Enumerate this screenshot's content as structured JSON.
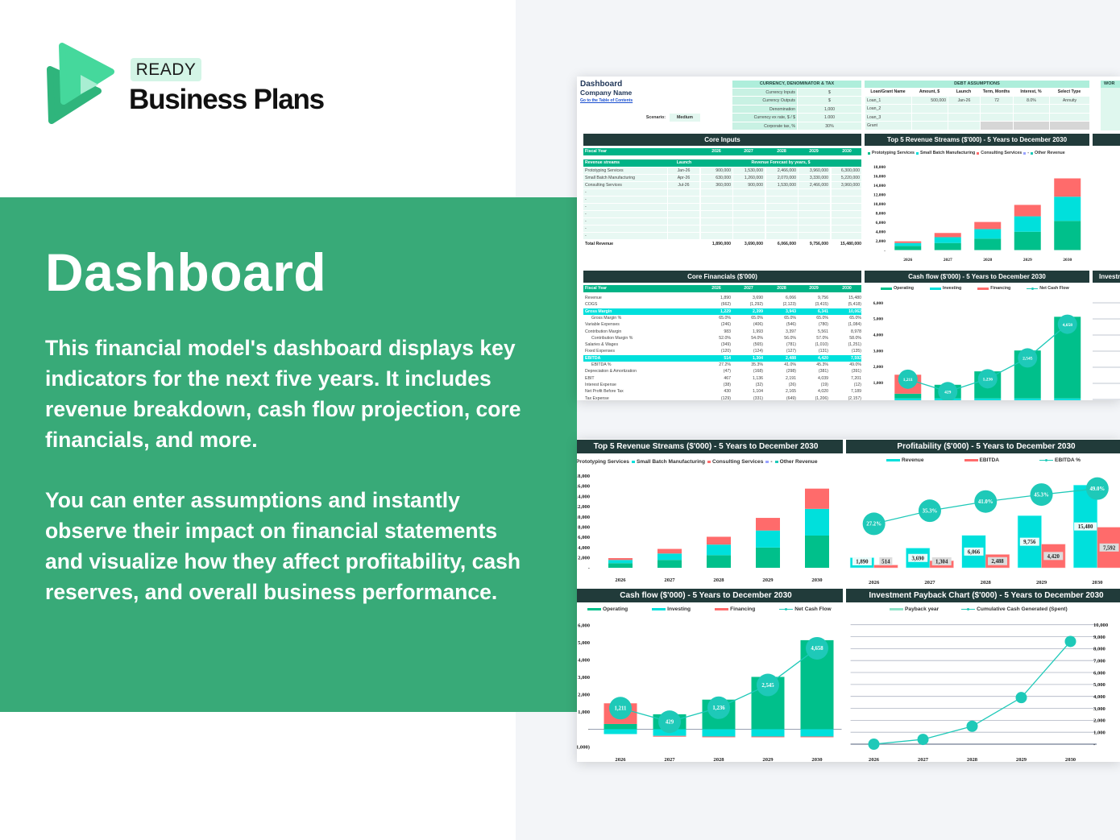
{
  "brand": {
    "badge": "READY",
    "name": "Business Plans"
  },
  "hero": {
    "title": "Dashboard",
    "paragraphs": [
      "This financial model's dashboard displays key indicators for the next five years. It includes revenue breakdown, cash flow projection, core financials, and more.",
      "You can enter assumptions and instantly observe their impact on financial statements and visualize how they affect profitability, cash reserves, and overall business performance."
    ]
  },
  "colors": {
    "band": "#38aa78",
    "dark_header": "#213b3a",
    "operating": "#00c08b",
    "investing": "#00e0dc",
    "financing": "#ff6b6b",
    "line": "#1ec9b8"
  },
  "sheet": {
    "title": "Dashboard",
    "company": "Company Name",
    "toc_link": "Go to the Table of Contents",
    "scenario": {
      "label": "Scenario:",
      "value": "Medium"
    },
    "currency": {
      "title": "CURRENCY, DENOMINATOR & TAX",
      "rows": [
        [
          "Currency Inputs",
          "$"
        ],
        [
          "Currency Outputs",
          "$"
        ],
        [
          "Denomination",
          "1,000"
        ],
        [
          "Currency ex rate, $ / $",
          "1.000"
        ],
        [
          "Corporate tax, %",
          "30%"
        ]
      ]
    },
    "debt": {
      "title": "DEBT ASSUMPTIONS",
      "columns": [
        "Loan/Grant Name",
        "Amount, $",
        "Launch",
        "Term, Months",
        "Interest, %",
        "Select Type"
      ],
      "rows": [
        [
          "Loan_1",
          "500,000",
          "Jan-26",
          "72",
          "8.0%",
          "Annuity"
        ],
        [
          "Loan_2",
          "",
          "",
          "",
          "",
          ""
        ],
        [
          "Loan_3",
          "",
          "",
          "",
          "",
          ""
        ],
        [
          "Grant",
          "",
          "",
          "",
          "",
          ""
        ]
      ]
    },
    "working_capital_title": "WOR",
    "core_inputs": {
      "title": "Core Inputs",
      "fiscal_label": "Fiscal Year",
      "years": [
        "2026",
        "2027",
        "2028",
        "2029",
        "2030"
      ],
      "streams_label": "Revenue streams",
      "launch_label": "Launch",
      "forecast_label": "Revenue Forecast by years, $",
      "rows": [
        {
          "name": "Prototyping Services",
          "launch": "Jan-26",
          "values": [
            "900,000",
            "1,530,000",
            "2,466,000",
            "3,960,000",
            "6,300,000"
          ]
        },
        {
          "name": "Small Batch Manufacturing",
          "launch": "Apr-26",
          "values": [
            "630,000",
            "1,260,000",
            "2,070,000",
            "3,330,000",
            "5,220,000"
          ]
        },
        {
          "name": "Consulting Services",
          "launch": "Jul-26",
          "values": [
            "360,000",
            "900,000",
            "1,530,000",
            "2,466,000",
            "3,960,000"
          ]
        },
        {
          "name": "-",
          "launch": "",
          "values": [
            "",
            "",
            "",
            "",
            ""
          ]
        },
        {
          "name": "-",
          "launch": "",
          "values": [
            "",
            "",
            "",
            "",
            ""
          ]
        },
        {
          "name": "-",
          "launch": "",
          "values": [
            "",
            "",
            "",
            "",
            ""
          ]
        },
        {
          "name": "-",
          "launch": "",
          "values": [
            "",
            "",
            "",
            "",
            ""
          ]
        },
        {
          "name": "-",
          "launch": "",
          "values": [
            "",
            "",
            "",
            "",
            ""
          ]
        },
        {
          "name": "-",
          "launch": "",
          "values": [
            "",
            "",
            "",
            "",
            ""
          ]
        },
        {
          "name": "-",
          "launch": "",
          "values": [
            "",
            "",
            "",
            "",
            ""
          ]
        }
      ],
      "total": {
        "label": "Total Revenue",
        "values": [
          "1,890,000",
          "3,690,000",
          "6,066,000",
          "9,756,000",
          "15,480,000"
        ]
      }
    },
    "core_financials": {
      "title": "Core Financials ($'000)",
      "fiscal_label": "Fiscal Year",
      "years": [
        "2026",
        "2027",
        "2028",
        "2029",
        "2030"
      ],
      "rows": [
        {
          "label": "Revenue",
          "style": "",
          "values": [
            "1,890",
            "3,690",
            "6,066",
            "9,756",
            "15,480"
          ]
        },
        {
          "label": "COGS",
          "style": "",
          "values": [
            "(662)",
            "(1,292)",
            "(2,123)",
            "(3,415)",
            "(5,418)"
          ]
        },
        {
          "label": "Gross Margin",
          "style": "highlight",
          "values": [
            "1,229",
            "2,399",
            "3,943",
            "6,341",
            "10,062"
          ]
        },
        {
          "label": "Gross Margin %",
          "style": "indent",
          "values": [
            "65.0%",
            "65.0%",
            "65.0%",
            "65.0%",
            "65.0%"
          ]
        },
        {
          "label": "Variable Expenses",
          "style": "",
          "values": [
            "(246)",
            "(406)",
            "(546)",
            "(780)",
            "(1,084)"
          ]
        },
        {
          "label": "Contribution Margin",
          "style": "",
          "values": [
            "983",
            "1,993",
            "3,397",
            "5,561",
            "8,978"
          ]
        },
        {
          "label": "Contribution Margin %",
          "style": "indent",
          "values": [
            "52.0%",
            "54.0%",
            "56.0%",
            "57.0%",
            "58.0%"
          ]
        },
        {
          "label": "Salaries & Wages",
          "style": "",
          "values": [
            "(349)",
            "(565)",
            "(781)",
            "(1,010)",
            "(1,251)"
          ]
        },
        {
          "label": "Fixed Expenses",
          "style": "",
          "values": [
            "(120)",
            "(124)",
            "(127)",
            "(131)",
            "(135)"
          ]
        },
        {
          "label": "EBITDA",
          "style": "highlight",
          "values": [
            "514",
            "1,304",
            "2,488",
            "4,420",
            "7,592"
          ]
        },
        {
          "label": "EBITDA %",
          "style": "indent",
          "values": [
            "27.2%",
            "35.3%",
            "41.0%",
            "45.3%",
            "49.0%"
          ]
        },
        {
          "label": "Depreciation & Amortization",
          "style": "",
          "values": [
            "(47)",
            "(168)",
            "(298)",
            "(381)",
            "(391)"
          ]
        },
        {
          "label": "EBIT",
          "style": "",
          "values": [
            "467",
            "1,136",
            "2,191",
            "4,039",
            "7,201"
          ]
        },
        {
          "label": "Interest Expense",
          "style": "",
          "values": [
            "(38)",
            "(32)",
            "(26)",
            "(19)",
            "(12)"
          ]
        },
        {
          "label": "Net Profit Before Tax",
          "style": "",
          "values": [
            "430",
            "1,104",
            "2,165",
            "4,020",
            "7,189"
          ]
        },
        {
          "label": "Tax Expense",
          "style": "",
          "values": [
            "(129)",
            "(331)",
            "(649)",
            "(1,206)",
            "(2,157)"
          ]
        }
      ]
    }
  },
  "chart_data": [
    {
      "type": "bar",
      "stacked": true,
      "title": "Top 5 Revenue Streams ($'000) - 5 Years to December 2030",
      "categories": [
        "2026",
        "2027",
        "2028",
        "2029",
        "2030"
      ],
      "series": [
        {
          "name": "Prototyping Services",
          "color": "#00c08b",
          "values": [
            900,
            1530,
            2466,
            3960,
            6300
          ]
        },
        {
          "name": "Small Batch Manufacturing",
          "color": "#00e0dc",
          "values": [
            630,
            1260,
            2070,
            3330,
            5220
          ]
        },
        {
          "name": "Consulting Services",
          "color": "#ff6b6b",
          "values": [
            360,
            900,
            1530,
            2466,
            3960
          ]
        }
      ],
      "legend": [
        {
          "name": "Prototyping Services",
          "color": "#00c08b"
        },
        {
          "name": "Small Batch Manufacturing",
          "color": "#00e0dc"
        },
        {
          "name": "Consulting Services",
          "color": "#ff6b6b"
        },
        {
          "name": "-",
          "color": "#99a3ff"
        },
        {
          "name": "Other Revenue",
          "color": "#1ec9b8"
        }
      ],
      "ylim": [
        0,
        18000
      ],
      "yticks": [
        0,
        2000,
        4000,
        6000,
        8000,
        10000,
        12000,
        14000,
        16000,
        18000
      ],
      "grid": false
    },
    {
      "type": "bar",
      "stacked": true,
      "title": "Cash flow ($'000) - 5 Years to December 2030",
      "categories": [
        "2026",
        "2027",
        "2028",
        "2029",
        "2030"
      ],
      "series": [
        {
          "name": "Operating",
          "color": "#00c08b",
          "values": [
            300,
            860,
            1702,
            3011,
            5124
          ]
        },
        {
          "name": "Investing",
          "color": "#00e0dc",
          "values": [
            -280,
            -385,
            -420,
            -420,
            -420
          ]
        },
        {
          "name": "Financing",
          "color": "#ff6b6b",
          "values": [
            1191,
            -46,
            -46,
            -46,
            -46
          ]
        },
        {
          "name": "Net Cash Flow",
          "kind": "line",
          "color": "#1ec9b8",
          "labels": true,
          "values": [
            1211,
            429,
            1236,
            2545,
            4658
          ]
        }
      ],
      "ylim": [
        0,
        6000
      ],
      "yticks": [
        1000,
        2000,
        3000,
        4000,
        5000,
        6000
      ],
      "grid": false
    },
    {
      "type": "bar",
      "stacked": true,
      "title": "Top 5 Revenue Streams ($'000) - 5 Years to December 2030",
      "categories": [
        "2026",
        "2027",
        "2028",
        "2029",
        "2030"
      ],
      "series": [
        {
          "name": "Prototyping Services",
          "color": "#00c08b",
          "values": [
            900,
            1530,
            2466,
            3960,
            6300
          ]
        },
        {
          "name": "Small Batch Manufacturing",
          "color": "#00e0dc",
          "values": [
            630,
            1260,
            2070,
            3330,
            5220
          ]
        },
        {
          "name": "Consulting Services",
          "color": "#ff6b6b",
          "values": [
            360,
            900,
            1530,
            2466,
            3960
          ]
        }
      ],
      "legend": [
        {
          "name": "Prototyping Services",
          "color": "#00c08b"
        },
        {
          "name": "Small Batch Manufacturing",
          "color": "#00e0dc"
        },
        {
          "name": "Consulting Services",
          "color": "#ff6b6b"
        },
        {
          "name": "-",
          "color": "#99a3ff"
        },
        {
          "name": "Other Revenue",
          "color": "#1ec9b8"
        }
      ],
      "ylim": [
        0,
        18000
      ],
      "yticks": [
        0,
        2000,
        4000,
        6000,
        8000,
        10000,
        12000,
        14000,
        16000,
        18000
      ],
      "grid": false
    },
    {
      "type": "bar",
      "stacked": false,
      "title": "Profitability ($'000) - 5 Years to December 2030",
      "categories": [
        "2026",
        "2027",
        "2028",
        "2029",
        "2030"
      ],
      "series": [
        {
          "name": "Revenue",
          "color": "#00e0dc",
          "labels": true,
          "values": [
            1890,
            3690,
            6066,
            9756,
            15480
          ]
        },
        {
          "name": "EBITDA",
          "color": "#ff6b6b",
          "labels": true,
          "values": [
            514,
            1304,
            2488,
            4420,
            7592
          ]
        },
        {
          "name": "EBITDA %",
          "kind": "line",
          "axis": "secondary",
          "color": "#1ec9b8",
          "labels": true,
          "unit": "%",
          "values": [
            27.2,
            35.3,
            41.0,
            45.3,
            49.0
          ]
        }
      ],
      "ylim": [
        0,
        18000
      ],
      "y2lim": [
        0,
        59.5
      ],
      "yticks": [],
      "grid": false
    },
    {
      "type": "bar",
      "stacked": true,
      "title": "Cash flow ($'000) - 5 Years to December 2030",
      "categories": [
        "2026",
        "2027",
        "2028",
        "2029",
        "2030"
      ],
      "series": [
        {
          "name": "Operating",
          "color": "#00c08b",
          "values": [
            300,
            860,
            1702,
            3011,
            5124
          ]
        },
        {
          "name": "Investing",
          "color": "#00e0dc",
          "values": [
            -280,
            -385,
            -420,
            -420,
            -420
          ]
        },
        {
          "name": "Financing",
          "color": "#ff6b6b",
          "values": [
            1191,
            -46,
            -46,
            -46,
            -46
          ]
        },
        {
          "name": "Net Cash Flow",
          "kind": "line",
          "color": "#1ec9b8",
          "labels": true,
          "values": [
            1211,
            429,
            1236,
            2545,
            4658
          ]
        }
      ],
      "ylim": [
        -1000,
        6000
      ],
      "yticks": [
        -1000,
        0,
        1000,
        2000,
        3000,
        4000,
        5000,
        6000
      ],
      "grid": false
    },
    {
      "type": "line",
      "title": "Investment Payback Chart ($'000) - 5 Years to December 2030",
      "categories": [
        "2026",
        "2027",
        "2028",
        "2029",
        "2030"
      ],
      "series": [
        {
          "name": "Cumulative Cash Generated (Spent)",
          "kind": "line",
          "color": "#1ec9b8",
          "markers": true,
          "values": [
            0,
            400,
            1500,
            3900,
            8600
          ]
        }
      ],
      "legend": [
        {
          "name": "Payback year",
          "color": "#8fe3c8",
          "shape": "box"
        },
        {
          "name": "Cumulative Cash Generated (Spent)",
          "color": "#1ec9b8",
          "shape": "line"
        }
      ],
      "ylim": [
        0,
        10000
      ],
      "yticks": [
        0,
        1000,
        2000,
        3000,
        4000,
        5000,
        6000,
        7000,
        8000,
        9000,
        10000
      ],
      "grid": true,
      "y_axis": "right"
    }
  ]
}
